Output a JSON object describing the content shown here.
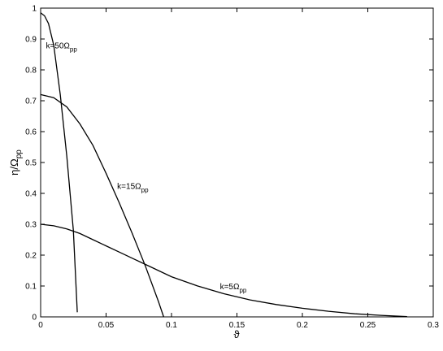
{
  "chart_data": {
    "type": "line",
    "x_label": "ϑ",
    "y_label": {
      "text": "η/Ω",
      "sub": "pp"
    },
    "xlim": [
      0,
      0.3
    ],
    "ylim": [
      0,
      1
    ],
    "xticks": [
      0,
      0.05,
      0.1,
      0.15,
      0.2,
      0.25,
      0.3
    ],
    "yticks": [
      0,
      0.1,
      0.2,
      0.3,
      0.4,
      0.5,
      0.6,
      0.7,
      0.8,
      0.9,
      1
    ],
    "series": [
      {
        "name": "k=50Ω",
        "sub": "pp",
        "color": "#000000",
        "x": [
          0,
          0.003,
          0.006,
          0.01,
          0.015,
          0.02,
          0.025,
          0.028
        ],
        "values": [
          0.985,
          0.975,
          0.95,
          0.88,
          0.72,
          0.52,
          0.28,
          0.015
        ]
      },
      {
        "name": "k=15Ω",
        "sub": "pp",
        "color": "#000000",
        "x": [
          0,
          0.01,
          0.02,
          0.03,
          0.04,
          0.05,
          0.06,
          0.07,
          0.08,
          0.09,
          0.094
        ],
        "values": [
          0.72,
          0.71,
          0.68,
          0.625,
          0.555,
          0.465,
          0.37,
          0.27,
          0.165,
          0.05,
          0
        ]
      },
      {
        "name": "k=5Ω",
        "sub": "pp",
        "color": "#000000",
        "x": [
          0,
          0.01,
          0.02,
          0.03,
          0.04,
          0.05,
          0.06,
          0.07,
          0.08,
          0.1,
          0.12,
          0.14,
          0.16,
          0.18,
          0.2,
          0.22,
          0.24,
          0.26,
          0.28
        ],
        "values": [
          0.3,
          0.295,
          0.285,
          0.27,
          0.25,
          0.23,
          0.21,
          0.19,
          0.17,
          0.13,
          0.1,
          0.075,
          0.055,
          0.04,
          0.028,
          0.018,
          0.01,
          0.005,
          0.001
        ]
      }
    ]
  }
}
